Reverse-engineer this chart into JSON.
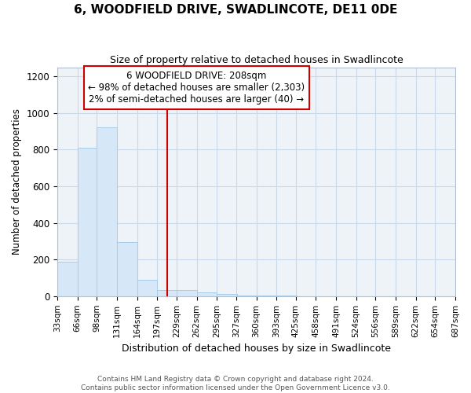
{
  "title": "6, WOODFIELD DRIVE, SWADLINCOTE, DE11 0DE",
  "subtitle": "Size of property relative to detached houses in Swadlincote",
  "xlabel": "Distribution of detached houses by size in Swadlincote",
  "ylabel": "Number of detached properties",
  "annotation_line1": "6 WOODFIELD DRIVE: 208sqm",
  "annotation_line2": "← 98% of detached houses are smaller (2,303)",
  "annotation_line3": "2% of semi-detached houses are larger (40) →",
  "property_size": 208,
  "bin_edges": [
    33,
    66,
    98,
    131,
    164,
    197,
    229,
    262,
    295,
    327,
    360,
    393,
    425,
    458,
    491,
    524,
    556,
    589,
    622,
    654,
    687
  ],
  "bar_heights": [
    190,
    810,
    920,
    295,
    90,
    35,
    35,
    20,
    10,
    5,
    3,
    2,
    1,
    1,
    0,
    0,
    0,
    0,
    0,
    0
  ],
  "bar_color": "#d6e8f7",
  "bar_edge_color": "#a8cce8",
  "vline_color": "#cc0000",
  "vline_x": 213,
  "annotation_box_edge_color": "#cc0000",
  "ylim": [
    0,
    1250
  ],
  "yticks": [
    0,
    200,
    400,
    600,
    800,
    1000,
    1200
  ],
  "footer_line1": "Contains HM Land Registry data © Crown copyright and database right 2024.",
  "footer_line2": "Contains public sector information licensed under the Open Government Licence v3.0.",
  "background_color": "#ffffff",
  "plot_bg_color": "#eef3f8",
  "grid_color": "#c8d8e8"
}
